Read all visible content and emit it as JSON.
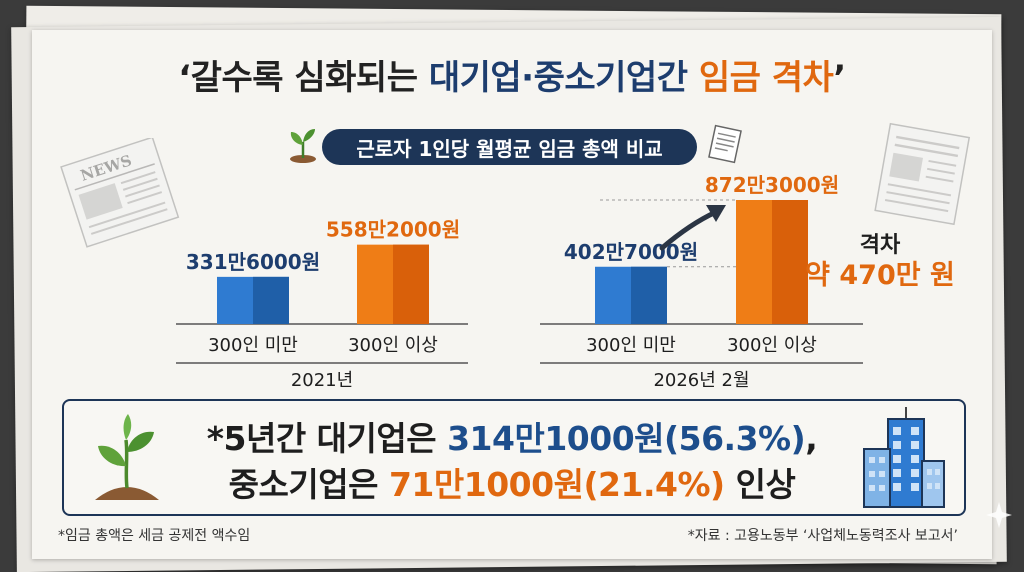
{
  "headline": {
    "part1": "‘갈수록 심화되는 ",
    "part2": "대기업·중소기업간",
    "part3": " ",
    "part4": "임금 격차",
    "part5": "’"
  },
  "subtitle": "근로자 1인당 월평균 임금 총액 비교",
  "news_label": "NEWS",
  "gap": {
    "label": "격차",
    "value": "약 470만 원"
  },
  "summary": {
    "l1a": "*5년간 대기업은 ",
    "l1b": "314만1000원(56.3%)",
    "l1c": ",",
    "l2a": "중소기업은 ",
    "l2b": "71만1000원(21.4%)",
    "l2c": " 인상"
  },
  "footnotes": {
    "left": "*임금 총액은 세금 공제전 액수임",
    "right": "*자료 : 고용노동부 ‘사업체노동력조사 보고서’"
  },
  "colors": {
    "navy": "#1d3d6e",
    "blue": "#2f7bd1",
    "orange": "#ef7d16",
    "dark_navy": "#1d3557"
  },
  "chart_data": {
    "type": "bar",
    "title": "근로자 1인당 월평균 임금 총액 비교",
    "unit": "원",
    "groups": [
      {
        "period": "2021년",
        "bars": [
          {
            "category": "300인 미만",
            "value": 3316000,
            "label": "331만6000원",
            "color": "blue"
          },
          {
            "category": "300인 이상",
            "value": 5582000,
            "label": "558만2000원",
            "color": "orange"
          }
        ]
      },
      {
        "period": "2026년 2월",
        "bars": [
          {
            "category": "300인 미만",
            "value": 4027000,
            "label": "402만7000원",
            "color": "blue"
          },
          {
            "category": "300인 이상",
            "value": 8723000,
            "label": "872만3000원",
            "color": "orange"
          }
        ]
      }
    ]
  }
}
